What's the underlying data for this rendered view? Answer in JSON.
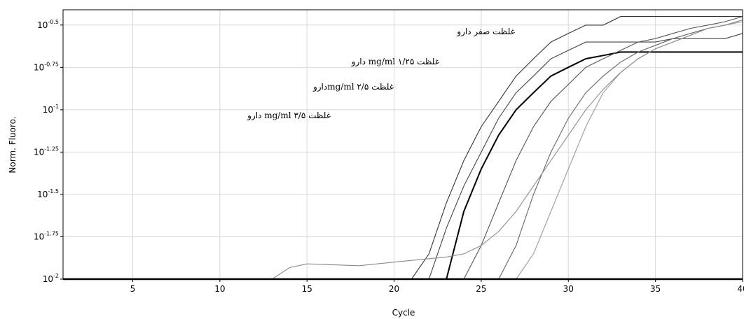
{
  "chart_data": {
    "type": "line",
    "x_label": "Cycle",
    "y_label": "Norm. Fluoro.",
    "log_scale_y": true,
    "grid": true,
    "xlim": [
      1,
      40
    ],
    "xticks": [
      5,
      10,
      15,
      20,
      25,
      30,
      35,
      40
    ],
    "ylim": [
      0.01,
      0.389
    ],
    "yticks": [
      {
        "value": 0.01,
        "label": "10^-2"
      },
      {
        "value": 0.01778,
        "label": "10^-1.75"
      },
      {
        "value": 0.03162,
        "label": "10^-1.5"
      },
      {
        "value": 0.05623,
        "label": "10^-1.25"
      },
      {
        "value": 0.1,
        "label": "10^-1"
      },
      {
        "value": 0.1778,
        "label": "10^-0.75"
      },
      {
        "value": 0.3162,
        "label": "10^-0.5"
      }
    ],
    "annotations": [
      "غلظت صفر دارو",
      "غلظت mg/ml ۱/۲۵ دارو",
      "غلظت mg/ml ۲/۵دارو",
      "غلظت mg/ml ۳/۵ دارو"
    ],
    "x": [
      1,
      13,
      14,
      15,
      18,
      20,
      21,
      22,
      23,
      24,
      25,
      26,
      27,
      28,
      29,
      30,
      31,
      32,
      33,
      34,
      35,
      36,
      37,
      38,
      39,
      40
    ],
    "series": [
      {
        "color": "#333333",
        "values": [
          0.01,
          0.01,
          0.01,
          0.01,
          0.01,
          0.01,
          0.01,
          0.0141,
          0.0282,
          0.0501,
          0.0794,
          0.112,
          0.158,
          0.2,
          0.251,
          0.282,
          0.316,
          0.316,
          0.355,
          0.355,
          0.355,
          0.355,
          0.355,
          0.355,
          0.355,
          0.355
        ]
      },
      {
        "color": "#444444",
        "values": [
          0.01,
          0.01,
          0.01,
          0.01,
          0.01,
          0.01,
          0.01,
          0.01,
          0.02,
          0.0355,
          0.0562,
          0.0891,
          0.126,
          0.158,
          0.2,
          0.224,
          0.251,
          0.251,
          0.251,
          0.251,
          0.251,
          0.263,
          0.263,
          0.263,
          0.263,
          0.282
        ]
      },
      {
        "color": "#000000",
        "values": [
          0.01,
          0.01,
          0.01,
          0.01,
          0.01,
          0.01,
          0.01,
          0.01,
          0.01,
          0.0251,
          0.0447,
          0.0708,
          0.1,
          0.126,
          0.158,
          0.178,
          0.2,
          0.209,
          0.219,
          0.219,
          0.219,
          0.219,
          0.219,
          0.219,
          0.219,
          0.219
        ]
      },
      {
        "color": "#555555",
        "values": [
          0.01,
          0.01,
          0.01,
          0.01,
          0.01,
          0.01,
          0.01,
          0.01,
          0.01,
          0.01,
          0.0158,
          0.0282,
          0.0501,
          0.0794,
          0.112,
          0.141,
          0.178,
          0.2,
          0.224,
          0.251,
          0.263,
          0.282,
          0.302,
          0.316,
          0.331,
          0.355
        ]
      },
      {
        "color": "#666666",
        "values": [
          0.01,
          0.01,
          0.01,
          0.01,
          0.01,
          0.01,
          0.01,
          0.01,
          0.01,
          0.01,
          0.01,
          0.01,
          0.0158,
          0.0316,
          0.0562,
          0.0891,
          0.126,
          0.158,
          0.191,
          0.219,
          0.24,
          0.263,
          0.282,
          0.302,
          0.316,
          0.339
        ]
      },
      {
        "color": "#999999",
        "values": [
          0.01,
          0.01,
          0.01,
          0.01,
          0.01,
          0.01,
          0.01,
          0.01,
          0.01,
          0.01,
          0.01,
          0.01,
          0.01,
          0.0141,
          0.0251,
          0.0447,
          0.0794,
          0.126,
          0.166,
          0.2,
          0.229,
          0.251,
          0.275,
          0.302,
          0.316,
          0.331
        ]
      },
      {
        "color": "#8a8a8a",
        "values": [
          0.01,
          0.01,
          0.0117,
          0.0123,
          0.012,
          0.0126,
          0.0129,
          0.0132,
          0.0135,
          0.0141,
          0.0158,
          0.0191,
          0.0251,
          0.0355,
          0.0501,
          0.0708,
          0.1,
          0.132,
          0.166,
          0.2,
          0.229,
          0.251,
          0.275,
          0.302,
          0.316,
          0.339
        ]
      }
    ]
  }
}
